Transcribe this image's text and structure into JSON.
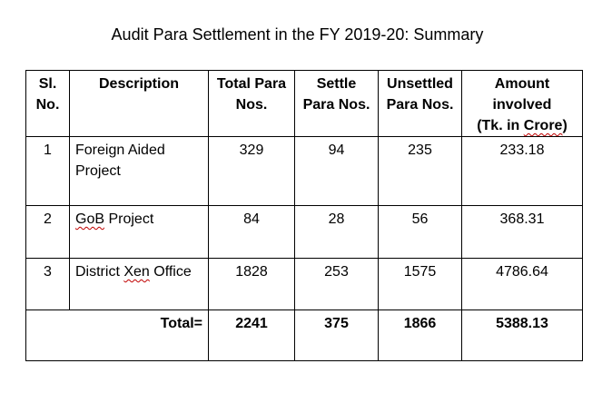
{
  "title": "Audit Para Settlement in the FY 2019-20: Summary",
  "headers": {
    "sl_line1": "Sl.",
    "sl_line2": "No.",
    "description": "Description",
    "total_line1": "Total Para",
    "total_line2": "Nos.",
    "settle_line1": "Settle",
    "settle_line2": "Para Nos.",
    "unsettled_line1": "Unsettled",
    "unsettled_line2": "Para Nos.",
    "amount_line1": "Amount",
    "amount_line2": "involved",
    "amount_line3_pre": "(Tk. in ",
    "amount_line3_word": "Crore",
    "amount_line3_post": ")"
  },
  "rows": [
    {
      "sl": "1",
      "desc_line1": "Foreign Aided",
      "desc_line2": "Project",
      "total": "329",
      "settle": "94",
      "unsettled": "235",
      "amount": "233.18"
    },
    {
      "sl": "2",
      "desc_word": "GoB",
      "desc_rest": " Project",
      "total": "84",
      "settle": "28",
      "unsettled": "56",
      "amount": "368.31"
    },
    {
      "sl": "3",
      "desc_pre": "District ",
      "desc_word": "Xen",
      "desc_rest": " Office",
      "total": "1828",
      "settle": "253",
      "unsettled": "1575",
      "amount": "4786.64"
    }
  ],
  "total_row": {
    "label": "Total=",
    "total": "2241",
    "settle": "375",
    "unsettled": "1866",
    "amount": "5388.13"
  }
}
